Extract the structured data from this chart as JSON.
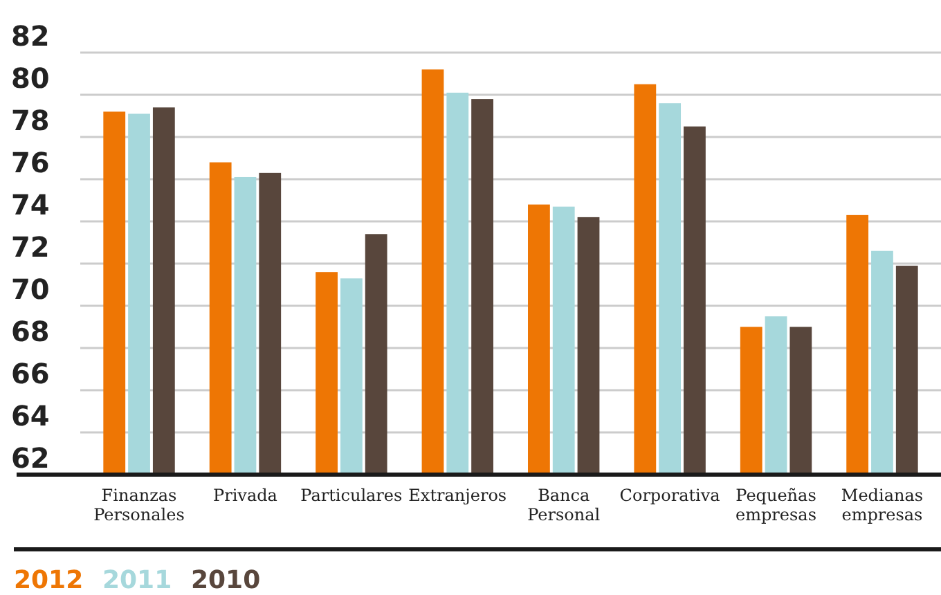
{
  "chart_data": {
    "type": "bar",
    "categories": [
      "Finanzas\nPersonales",
      "Privada",
      "Particulares",
      "Extranjeros",
      "Banca\nPersonal",
      "Corporativa",
      "Pequeñas\nempresas",
      "Medianas\nempresas"
    ],
    "series": [
      {
        "name": "2012",
        "color": "#ee7604",
        "values": [
          79.2,
          76.8,
          71.6,
          81.2,
          74.8,
          80.5,
          69.0,
          74.3
        ]
      },
      {
        "name": "2011",
        "color": "#a6d8dc",
        "values": [
          79.1,
          76.1,
          71.3,
          80.1,
          74.7,
          79.6,
          69.5,
          72.6
        ]
      },
      {
        "name": "2010",
        "color": "#58463c",
        "values": [
          79.4,
          76.3,
          73.4,
          79.8,
          74.2,
          78.5,
          69.0,
          71.9
        ]
      }
    ],
    "ylim": [
      62,
      82
    ],
    "yticks": [
      62,
      64,
      66,
      68,
      70,
      72,
      74,
      76,
      78,
      80,
      82
    ],
    "grid": "y",
    "legend": "bottom"
  }
}
